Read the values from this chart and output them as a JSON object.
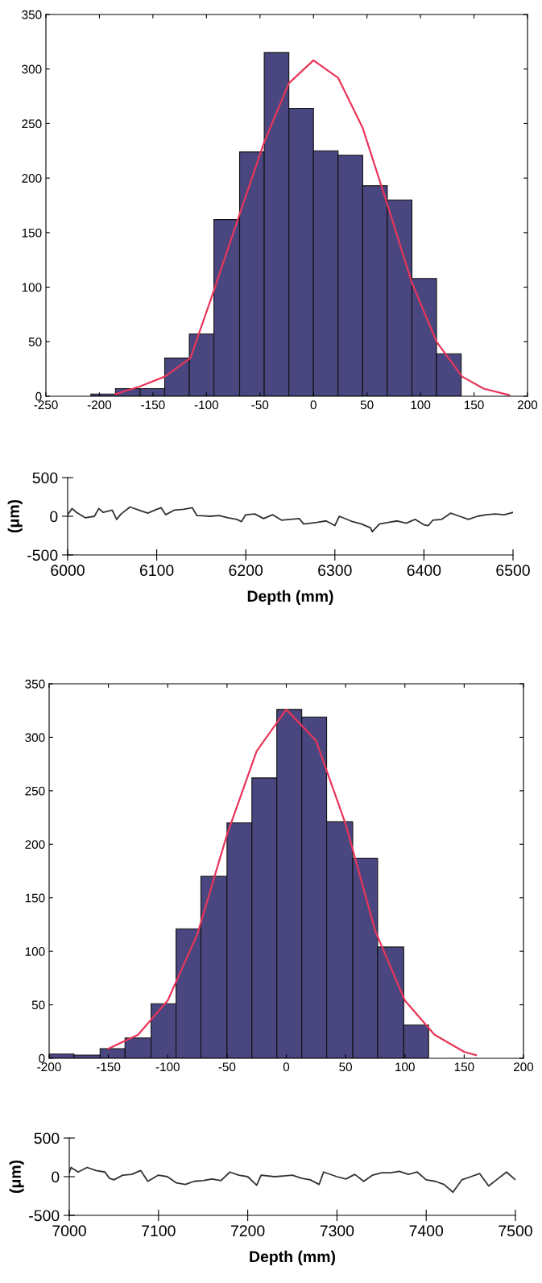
{
  "chart_data": [
    {
      "type": "histogram",
      "bins": [
        -208,
        -185,
        -162,
        -139,
        -116,
        -93,
        -69,
        -46,
        -23,
        0,
        23,
        46,
        69,
        92,
        115,
        138
      ],
      "values": [
        2,
        7,
        7,
        35,
        57,
        162,
        224,
        315,
        264,
        225,
        221,
        193,
        180,
        108,
        39
      ],
      "color": "#4a4680",
      "xlim": [
        -250,
        200
      ],
      "xticks": [
        -250,
        -200,
        -150,
        -100,
        -50,
        0,
        50,
        100,
        150,
        200
      ],
      "ylim": [
        0,
        350
      ],
      "yticks": [
        0,
        50,
        100,
        150,
        200,
        250,
        300,
        350
      ],
      "grid": false,
      "series": [
        {
          "type": "line",
          "color": "#e8365a",
          "x": [
            -185,
            -162,
            -139,
            -115,
            -93,
            -69,
            -46,
            -23,
            0,
            23,
            46,
            69,
            92,
            115,
            139,
            159,
            183
          ],
          "values": [
            2,
            9,
            18,
            35,
            97,
            167,
            233,
            287,
            308,
            292,
            246,
            176,
            104,
            50,
            18,
            7,
            1
          ]
        }
      ]
    },
    {
      "type": "line",
      "x": [
        6000,
        6005,
        6010,
        6020,
        6030,
        6035,
        6040,
        6050,
        6055,
        6060,
        6070,
        6080,
        6090,
        6100,
        6105,
        6110,
        6120,
        6130,
        6140,
        6145,
        6160,
        6170,
        6180,
        6190,
        6195,
        6200,
        6210,
        6220,
        6230,
        6240,
        6250,
        6260,
        6265,
        6280,
        6290,
        6300,
        6305,
        6320,
        6330,
        6340,
        6342,
        6350,
        6360,
        6370,
        6380,
        6390,
        6400,
        6405,
        6410,
        6420,
        6430,
        6440,
        6450,
        6460,
        6470,
        6480,
        6490,
        6500
      ],
      "series": [
        {
          "color": "#333333",
          "values": [
            20,
            100,
            50,
            -20,
            0,
            100,
            50,
            80,
            -40,
            30,
            120,
            80,
            40,
            90,
            110,
            20,
            80,
            90,
            110,
            10,
            0,
            10,
            -20,
            -40,
            -70,
            20,
            30,
            -30,
            20,
            -50,
            -40,
            -30,
            -100,
            -80,
            -60,
            -120,
            0,
            -70,
            -100,
            -150,
            -200,
            -100,
            -80,
            -60,
            -90,
            -40,
            -110,
            -120,
            -50,
            -40,
            40,
            0,
            -40,
            0,
            20,
            30,
            20,
            50
          ]
        }
      ],
      "xlim": [
        6000,
        6500
      ],
      "xticks": [
        6000,
        6100,
        6200,
        6300,
        6400,
        6500
      ],
      "ylim": [
        -500,
        500
      ],
      "yticks": [
        -500,
        0,
        500
      ],
      "xlabel": "Depth (mm)",
      "ylabel": "(μm)",
      "grid": false
    },
    {
      "type": "histogram",
      "bins": [
        -200,
        -179,
        -157,
        -136,
        -114,
        -93,
        -72,
        -50,
        -29,
        -8,
        13,
        34,
        56,
        77,
        99,
        120
      ],
      "values": [
        4,
        3,
        9,
        19,
        51,
        121,
        170,
        220,
        262,
        326,
        319,
        221,
        187,
        104,
        31
      ],
      "color": "#4a4680",
      "xlim": [
        -200,
        200
      ],
      "xticks": [
        -200,
        -150,
        -100,
        -50,
        0,
        50,
        100,
        150,
        200
      ],
      "ylim": [
        0,
        350
      ],
      "yticks": [
        0,
        50,
        100,
        150,
        200,
        250,
        300,
        350
      ],
      "grid": false,
      "series": [
        {
          "type": "line",
          "color": "#e8365a",
          "x": [
            -150,
            -125,
            -100,
            -75,
            -50,
            -25,
            0,
            25,
            50,
            75,
            100,
            125,
            150,
            160
          ],
          "values": [
            9,
            22,
            54,
            116,
            209,
            287,
            326,
            297,
            219,
            119,
            54,
            22,
            6,
            3
          ]
        }
      ]
    },
    {
      "type": "line",
      "x": [
        7000,
        7002,
        7010,
        7020,
        7030,
        7040,
        7045,
        7050,
        7060,
        7070,
        7080,
        7088,
        7100,
        7110,
        7120,
        7130,
        7140,
        7150,
        7160,
        7170,
        7180,
        7190,
        7200,
        7210,
        7215,
        7230,
        7240,
        7250,
        7260,
        7270,
        7280,
        7285,
        7300,
        7310,
        7320,
        7330,
        7340,
        7350,
        7360,
        7370,
        7380,
        7390,
        7400,
        7410,
        7420,
        7430,
        7440,
        7450,
        7460,
        7470,
        7480,
        7490,
        7500
      ],
      "series": [
        {
          "color": "#333333",
          "values": [
            50,
            120,
            60,
            120,
            80,
            60,
            -20,
            -40,
            20,
            30,
            80,
            -60,
            20,
            0,
            -80,
            -100,
            -60,
            -50,
            -30,
            -50,
            60,
            20,
            0,
            -110,
            20,
            0,
            10,
            20,
            -20,
            -40,
            -100,
            60,
            0,
            -30,
            30,
            -60,
            20,
            50,
            50,
            70,
            30,
            60,
            -40,
            -60,
            -100,
            -200,
            -40,
            0,
            40,
            -120,
            -30,
            60,
            -40
          ]
        }
      ],
      "xlim": [
        7000,
        7500
      ],
      "xticks": [
        7000,
        7100,
        7200,
        7300,
        7400,
        7500
      ],
      "ylim": [
        -500,
        500
      ],
      "yticks": [
        -500,
        0,
        500
      ],
      "xlabel": "Depth (mm)",
      "ylabel": "(μm)",
      "grid": false
    }
  ]
}
